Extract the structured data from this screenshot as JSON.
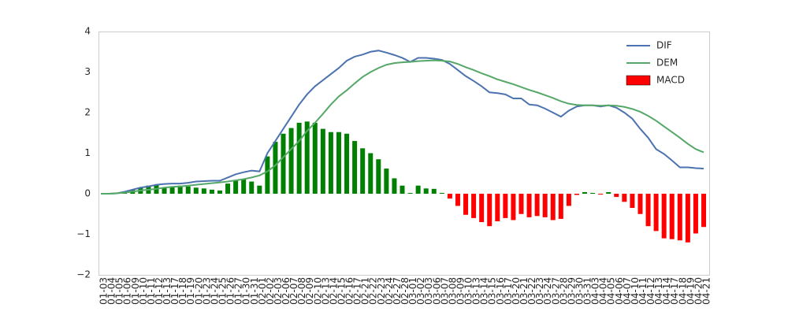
{
  "chart_data": {
    "type": "macd",
    "categories": [
      "01-03",
      "01-04",
      "01-05",
      "01-06",
      "01-09",
      "01-10",
      "01-11",
      "01-12",
      "01-13",
      "01-17",
      "01-18",
      "01-19",
      "01-20",
      "01-23",
      "01-24",
      "01-25",
      "01-26",
      "01-27",
      "01-30",
      "01-31",
      "02-01",
      "02-02",
      "02-03",
      "02-06",
      "02-07",
      "02-08",
      "02-09",
      "02-10",
      "02-13",
      "02-14",
      "02-15",
      "02-16",
      "02-17",
      "02-21",
      "02-22",
      "02-23",
      "02-24",
      "02-27",
      "02-28",
      "03-01",
      "03-02",
      "03-03",
      "03-06",
      "03-07",
      "03-08",
      "03-09",
      "03-10",
      "03-13",
      "03-14",
      "03-15",
      "03-16",
      "03-17",
      "03-20",
      "03-21",
      "03-22",
      "03-23",
      "03-24",
      "03-27",
      "03-28",
      "03-29",
      "03-30",
      "03-31",
      "04-03",
      "04-04",
      "04-05",
      "04-06",
      "04-07",
      "04-10",
      "04-11",
      "04-12",
      "04-13",
      "04-14",
      "04-17",
      "04-18",
      "04-19",
      "04-20",
      "04-21"
    ],
    "series": [
      {
        "name": "DIF",
        "color": "#4c72b0",
        "kind": "line",
        "values": [
          0,
          0,
          0.01,
          0.05,
          0.1,
          0.15,
          0.18,
          0.22,
          0.24,
          0.25,
          0.25,
          0.27,
          0.3,
          0.31,
          0.32,
          0.32,
          0.4,
          0.48,
          0.53,
          0.57,
          0.55,
          1.0,
          1.3,
          1.6,
          1.9,
          2.2,
          2.45,
          2.65,
          2.8,
          2.95,
          3.1,
          3.28,
          3.38,
          3.43,
          3.5,
          3.53,
          3.48,
          3.42,
          3.35,
          3.25,
          3.35,
          3.35,
          3.33,
          3.3,
          3.2,
          3.05,
          2.9,
          2.78,
          2.65,
          2.5,
          2.48,
          2.45,
          2.35,
          2.35,
          2.2,
          2.18,
          2.1,
          2.0,
          1.9,
          2.05,
          2.15,
          2.18,
          2.18,
          2.15,
          2.18,
          2.12,
          2.0,
          1.85,
          1.6,
          1.38,
          1.1,
          0.98,
          0.82,
          0.65,
          0.65,
          0.63,
          0.62
        ]
      },
      {
        "name": "DEM",
        "color": "#55a868",
        "kind": "line",
        "values": [
          0,
          0,
          0.01,
          0.03,
          0.05,
          0.08,
          0.1,
          0.12,
          0.15,
          0.17,
          0.18,
          0.2,
          0.22,
          0.24,
          0.26,
          0.28,
          0.3,
          0.33,
          0.36,
          0.4,
          0.45,
          0.55,
          0.7,
          0.9,
          1.1,
          1.3,
          1.55,
          1.75,
          1.97,
          2.2,
          2.4,
          2.55,
          2.72,
          2.88,
          3.0,
          3.1,
          3.18,
          3.22,
          3.24,
          3.25,
          3.27,
          3.28,
          3.29,
          3.28,
          3.26,
          3.2,
          3.12,
          3.05,
          2.97,
          2.9,
          2.82,
          2.76,
          2.7,
          2.63,
          2.56,
          2.5,
          2.43,
          2.36,
          2.28,
          2.22,
          2.19,
          2.18,
          2.18,
          2.17,
          2.18,
          2.17,
          2.14,
          2.09,
          2.02,
          1.92,
          1.8,
          1.66,
          1.52,
          1.38,
          1.23,
          1.1,
          1.02
        ]
      },
      {
        "name": "MACD",
        "color": "#ff0000",
        "positive_color": "#008000",
        "kind": "bar",
        "values": [
          0,
          0.01,
          0.03,
          0.05,
          0.1,
          0.15,
          0.2,
          0.22,
          0.15,
          0.18,
          0.2,
          0.18,
          0.15,
          0.13,
          0.1,
          0.08,
          0.25,
          0.33,
          0.35,
          0.3,
          0.2,
          0.92,
          1.28,
          1.48,
          1.62,
          1.75,
          1.78,
          1.75,
          1.6,
          1.52,
          1.52,
          1.48,
          1.3,
          1.12,
          1.0,
          0.85,
          0.62,
          0.38,
          0.2,
          0.02,
          0.2,
          0.13,
          0.12,
          0.02,
          -0.12,
          -0.3,
          -0.52,
          -0.6,
          -0.7,
          -0.8,
          -0.68,
          -0.6,
          -0.65,
          -0.5,
          -0.58,
          -0.55,
          -0.58,
          -0.65,
          -0.62,
          -0.3,
          -0.03,
          0.04,
          0.02,
          -0.02,
          0.04,
          -0.08,
          -0.2,
          -0.35,
          -0.5,
          -0.8,
          -0.92,
          -1.1,
          -1.12,
          -1.15,
          -1.2,
          -0.98,
          -0.82
        ]
      }
    ],
    "ylim": [
      -2,
      4
    ],
    "yticks": [
      {
        "value": -2,
        "label": "−2"
      },
      {
        "value": -1,
        "label": "−1"
      },
      0,
      1,
      2,
      3,
      4
    ],
    "grid": false,
    "legend": "upper right"
  }
}
